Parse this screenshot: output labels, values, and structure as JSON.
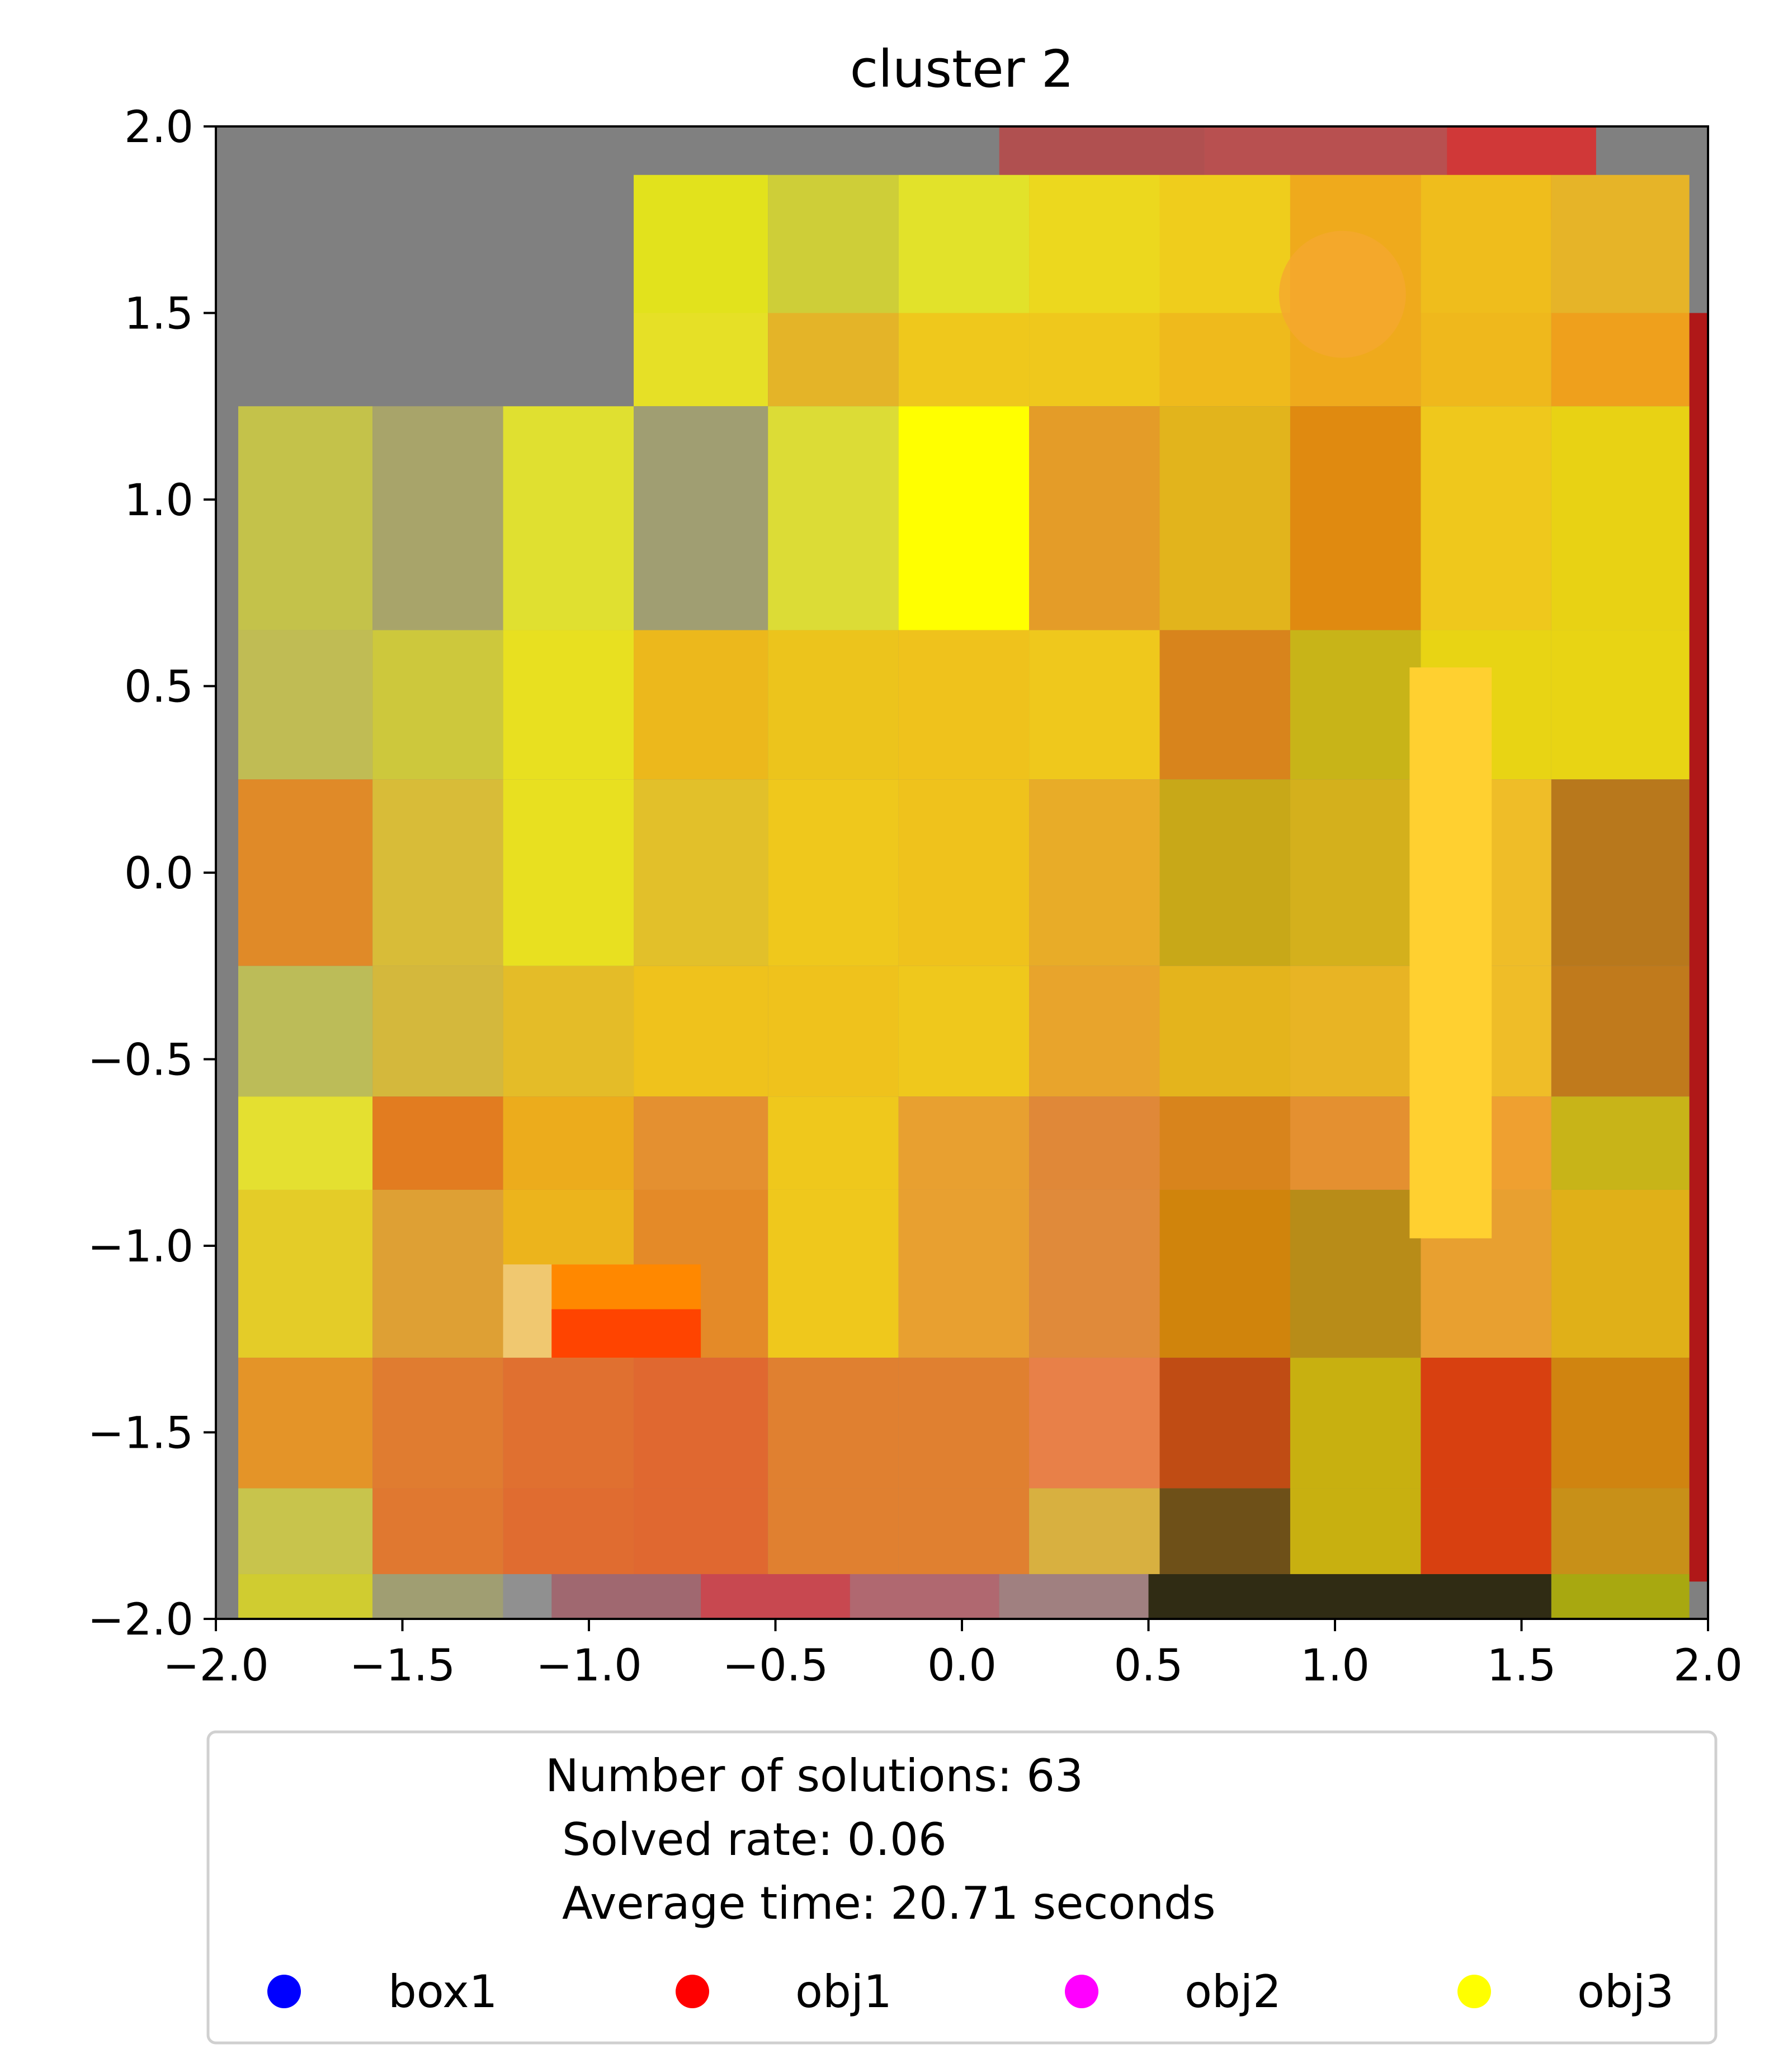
{
  "chart_data": {
    "type": "heatmap",
    "title": "cluster 2",
    "xlabel": "",
    "ylabel": "",
    "xlim": [
      -2.0,
      2.0
    ],
    "ylim": [
      -2.0,
      2.0
    ],
    "xticks": [
      "−2.0",
      "−1.5",
      "−1.0",
      "−0.5",
      "0.0",
      "0.5",
      "1.0",
      "1.5",
      "2.0"
    ],
    "yticks": [
      "2.0",
      "1.5",
      "1.0",
      "0.5",
      "0.0",
      "−0.5",
      "−1.0",
      "−1.5",
      "−2.0"
    ],
    "xtick_values": [
      -2.0,
      -1.5,
      -1.0,
      -0.5,
      0.0,
      0.5,
      1.0,
      1.5,
      2.0
    ],
    "ytick_values": [
      2.0,
      1.5,
      1.0,
      0.5,
      0.0,
      -0.5,
      -1.0,
      -1.5,
      -2.0
    ],
    "grid": false,
    "background_color": "#808080",
    "cells": [
      {
        "x0": 0.1,
        "x1": 0.65,
        "y0": 1.75,
        "y1": 2.0,
        "color": "#b05050"
      },
      {
        "x0": 0.65,
        "x1": 1.3,
        "y0": 1.75,
        "y1": 2.0,
        "color": "#b85050"
      },
      {
        "x0": 1.3,
        "x1": 1.7,
        "y0": 1.75,
        "y1": 2.0,
        "color": "#d03838"
      },
      {
        "x0": -0.88,
        "x1": -0.52,
        "y0": 1.5,
        "y1": 1.87,
        "color": "#e2e21c"
      },
      {
        "x0": -0.52,
        "x1": -0.17,
        "y0": 1.5,
        "y1": 1.87,
        "color": "#cece38"
      },
      {
        "x0": -0.17,
        "x1": 0.18,
        "y0": 1.5,
        "y1": 1.87,
        "color": "#e2e22a"
      },
      {
        "x0": 0.18,
        "x1": 0.53,
        "y0": 1.5,
        "y1": 1.87,
        "color": "#ecd81e"
      },
      {
        "x0": 0.53,
        "x1": 0.88,
        "y0": 1.5,
        "y1": 1.87,
        "color": "#efcd1c"
      },
      {
        "x0": 0.88,
        "x1": 1.23,
        "y0": 1.5,
        "y1": 1.87,
        "color": "#efaa1c"
      },
      {
        "x0": 1.23,
        "x1": 1.58,
        "y0": 1.5,
        "y1": 1.87,
        "color": "#efbd1c"
      },
      {
        "x0": 1.58,
        "x1": 1.95,
        "y0": 1.5,
        "y1": 1.87,
        "color": "#e6b428"
      },
      {
        "x0": -0.88,
        "x1": -0.52,
        "y0": 1.25,
        "y1": 1.5,
        "color": "#e6e026"
      },
      {
        "x0": -0.52,
        "x1": -0.17,
        "y0": 1.25,
        "y1": 1.5,
        "color": "#e4b428"
      },
      {
        "x0": -0.17,
        "x1": 0.18,
        "y0": 1.25,
        "y1": 1.5,
        "color": "#efc81c"
      },
      {
        "x0": 0.18,
        "x1": 0.53,
        "y0": 1.25,
        "y1": 1.5,
        "color": "#efc81c"
      },
      {
        "x0": 0.53,
        "x1": 0.88,
        "y0": 1.25,
        "y1": 1.5,
        "color": "#efba1c"
      },
      {
        "x0": 0.88,
        "x1": 1.23,
        "y0": 1.25,
        "y1": 1.5,
        "color": "#efaa1c"
      },
      {
        "x0": 1.23,
        "x1": 1.58,
        "y0": 1.25,
        "y1": 1.5,
        "color": "#efb81c"
      },
      {
        "x0": 1.58,
        "x1": 1.95,
        "y0": 1.25,
        "y1": 1.5,
        "color": "#efa01c"
      },
      {
        "x0": -1.94,
        "x1": -1.58,
        "y0": 0.65,
        "y1": 1.25,
        "color": "#c4c24a"
      },
      {
        "x0": -1.58,
        "x1": -1.23,
        "y0": 0.65,
        "y1": 1.25,
        "color": "#a8a46a"
      },
      {
        "x0": -1.23,
        "x1": -0.88,
        "y0": 0.65,
        "y1": 1.25,
        "color": "#e0e030"
      },
      {
        "x0": -0.88,
        "x1": -0.52,
        "y0": 0.65,
        "y1": 1.25,
        "color": "#a09e72"
      },
      {
        "x0": -0.52,
        "x1": -0.17,
        "y0": 0.65,
        "y1": 1.25,
        "color": "#dcdc36"
      },
      {
        "x0": -0.17,
        "x1": 0.18,
        "y0": 0.65,
        "y1": 1.25,
        "color": "#ffff00"
      },
      {
        "x0": 0.18,
        "x1": 0.53,
        "y0": 0.65,
        "y1": 1.25,
        "color": "#e49c28"
      },
      {
        "x0": 0.53,
        "x1": 0.88,
        "y0": 0.65,
        "y1": 1.25,
        "color": "#e2b41c"
      },
      {
        "x0": 0.88,
        "x1": 1.23,
        "y0": 0.65,
        "y1": 1.25,
        "color": "#e08a10"
      },
      {
        "x0": 1.23,
        "x1": 1.58,
        "y0": 0.65,
        "y1": 1.25,
        "color": "#efc81c"
      },
      {
        "x0": 1.58,
        "x1": 1.95,
        "y0": 0.65,
        "y1": 1.25,
        "color": "#e8d214"
      },
      {
        "x0": -1.94,
        "x1": -1.58,
        "y0": 0.25,
        "y1": 0.65,
        "color": "#c0bc54"
      },
      {
        "x0": -1.58,
        "x1": -1.23,
        "y0": 0.25,
        "y1": 0.65,
        "color": "#cdc83c"
      },
      {
        "x0": -1.23,
        "x1": -0.88,
        "y0": 0.25,
        "y1": 0.65,
        "color": "#e8e020"
      },
      {
        "x0": -0.88,
        "x1": -0.52,
        "y0": 0.25,
        "y1": 0.65,
        "color": "#ecb81c"
      },
      {
        "x0": -0.52,
        "x1": -0.17,
        "y0": 0.25,
        "y1": 0.65,
        "color": "#ecc41c"
      },
      {
        "x0": -0.17,
        "x1": 0.18,
        "y0": 0.25,
        "y1": 0.65,
        "color": "#efc21c"
      },
      {
        "x0": 0.18,
        "x1": 0.53,
        "y0": 0.25,
        "y1": 0.65,
        "color": "#efc81c"
      },
      {
        "x0": 0.53,
        "x1": 0.88,
        "y0": 0.25,
        "y1": 0.65,
        "color": "#d8841c"
      },
      {
        "x0": 0.88,
        "x1": 1.23,
        "y0": 0.25,
        "y1": 0.65,
        "color": "#c8b418"
      },
      {
        "x0": 1.23,
        "x1": 1.58,
        "y0": 0.25,
        "y1": 0.65,
        "color": "#e8d414"
      },
      {
        "x0": 1.58,
        "x1": 1.95,
        "y0": 0.25,
        "y1": 0.65,
        "color": "#e8d414"
      },
      {
        "x0": -1.94,
        "x1": -1.58,
        "y0": -0.25,
        "y1": 0.25,
        "color": "#e08a28"
      },
      {
        "x0": -1.58,
        "x1": -1.23,
        "y0": -0.25,
        "y1": 0.25,
        "color": "#d8bc38"
      },
      {
        "x0": -1.23,
        "x1": -0.88,
        "y0": -0.25,
        "y1": 0.25,
        "color": "#e8e020"
      },
      {
        "x0": -0.88,
        "x1": -0.52,
        "y0": -0.25,
        "y1": 0.25,
        "color": "#e2c02a"
      },
      {
        "x0": -0.52,
        "x1": -0.17,
        "y0": -0.25,
        "y1": 0.25,
        "color": "#efc81c"
      },
      {
        "x0": -0.17,
        "x1": 0.18,
        "y0": -0.25,
        "y1": 0.25,
        "color": "#efc21c"
      },
      {
        "x0": 0.18,
        "x1": 0.53,
        "y0": -0.25,
        "y1": 0.25,
        "color": "#e8ac28"
      },
      {
        "x0": 0.53,
        "x1": 0.88,
        "y0": -0.25,
        "y1": 0.25,
        "color": "#c8a818"
      },
      {
        "x0": 0.88,
        "x1": 1.23,
        "y0": -0.25,
        "y1": 0.25,
        "color": "#d4b01c"
      },
      {
        "x0": 1.23,
        "x1": 1.58,
        "y0": -0.25,
        "y1": 0.25,
        "color": "#efbd28"
      },
      {
        "x0": 1.58,
        "x1": 1.95,
        "y0": -0.25,
        "y1": 0.25,
        "color": "#b8781c"
      },
      {
        "x0": -1.94,
        "x1": -1.58,
        "y0": -0.6,
        "y1": -0.25,
        "color": "#bcbc58"
      },
      {
        "x0": -1.58,
        "x1": -1.23,
        "y0": -0.6,
        "y1": -0.25,
        "color": "#d4b83c"
      },
      {
        "x0": -1.23,
        "x1": -0.88,
        "y0": -0.6,
        "y1": -0.25,
        "color": "#e4bc28"
      },
      {
        "x0": -0.88,
        "x1": -0.52,
        "y0": -0.6,
        "y1": -0.25,
        "color": "#efc21c"
      },
      {
        "x0": -0.52,
        "x1": -0.17,
        "y0": -0.6,
        "y1": -0.25,
        "color": "#efc21c"
      },
      {
        "x0": -0.17,
        "x1": 0.18,
        "y0": -0.6,
        "y1": -0.25,
        "color": "#efc81c"
      },
      {
        "x0": 0.18,
        "x1": 0.53,
        "y0": -0.6,
        "y1": -0.25,
        "color": "#e8a42c"
      },
      {
        "x0": 0.53,
        "x1": 0.88,
        "y0": -0.6,
        "y1": -0.25,
        "color": "#e4b41c"
      },
      {
        "x0": 0.88,
        "x1": 1.23,
        "y0": -0.6,
        "y1": -0.25,
        "color": "#e8b424"
      },
      {
        "x0": 1.23,
        "x1": 1.58,
        "y0": -0.6,
        "y1": -0.25,
        "color": "#efbd28"
      },
      {
        "x0": 1.58,
        "x1": 1.95,
        "y0": -0.6,
        "y1": -0.25,
        "color": "#c07a1c"
      },
      {
        "x0": -1.94,
        "x1": -1.58,
        "y0": -0.85,
        "y1": -0.6,
        "color": "#e4e030"
      },
      {
        "x0": -1.58,
        "x1": -1.23,
        "y0": -0.85,
        "y1": -0.6,
        "color": "#e27c20"
      },
      {
        "x0": -1.23,
        "x1": -0.88,
        "y0": -0.85,
        "y1": -0.6,
        "color": "#ecac1c"
      },
      {
        "x0": -0.88,
        "x1": -0.52,
        "y0": -0.85,
        "y1": -0.6,
        "color": "#e49030"
      },
      {
        "x0": -0.52,
        "x1": -0.17,
        "y0": -0.85,
        "y1": -0.6,
        "color": "#efc81c"
      },
      {
        "x0": -0.17,
        "x1": 0.18,
        "y0": -0.85,
        "y1": -0.6,
        "color": "#e8a030"
      },
      {
        "x0": 0.18,
        "x1": 0.53,
        "y0": -0.85,
        "y1": -0.6,
        "color": "#e08838"
      },
      {
        "x0": 0.53,
        "x1": 0.88,
        "y0": -0.85,
        "y1": -0.6,
        "color": "#d8841c"
      },
      {
        "x0": 0.88,
        "x1": 1.23,
        "y0": -0.85,
        "y1": -0.6,
        "color": "#e49030"
      },
      {
        "x0": 1.23,
        "x1": 1.58,
        "y0": -0.85,
        "y1": -0.6,
        "color": "#efa030"
      },
      {
        "x0": 1.58,
        "x1": 1.95,
        "y0": -0.85,
        "y1": -0.6,
        "color": "#c8b418"
      },
      {
        "x0": -1.94,
        "x1": -1.58,
        "y0": -1.3,
        "y1": -0.85,
        "color": "#e4cc28"
      },
      {
        "x0": -1.58,
        "x1": -1.23,
        "y0": -1.3,
        "y1": -0.85,
        "color": "#dea034"
      },
      {
        "x0": -1.23,
        "x1": -0.88,
        "y0": -1.3,
        "y1": -0.85,
        "color": "#ecb41c"
      },
      {
        "x0": -0.88,
        "x1": -0.52,
        "y0": -1.3,
        "y1": -0.85,
        "color": "#e48a28"
      },
      {
        "x0": -0.52,
        "x1": -0.17,
        "y0": -1.3,
        "y1": -0.85,
        "color": "#efc81c"
      },
      {
        "x0": -0.17,
        "x1": 0.18,
        "y0": -1.3,
        "y1": -0.85,
        "color": "#e8a030"
      },
      {
        "x0": 0.18,
        "x1": 0.53,
        "y0": -1.3,
        "y1": -0.85,
        "color": "#e08a3a"
      },
      {
        "x0": 0.53,
        "x1": 0.88,
        "y0": -1.3,
        "y1": -0.85,
        "color": "#d0840c"
      },
      {
        "x0": 0.88,
        "x1": 1.23,
        "y0": -1.3,
        "y1": -0.85,
        "color": "#b88c18"
      },
      {
        "x0": 1.23,
        "x1": 1.58,
        "y0": -1.3,
        "y1": -0.85,
        "color": "#e8a030"
      },
      {
        "x0": 1.58,
        "x1": 1.95,
        "y0": -1.3,
        "y1": -0.85,
        "color": "#e0b018"
      },
      {
        "x0": -1.94,
        "x1": -1.58,
        "y0": -1.65,
        "y1": -1.3,
        "color": "#e49428"
      },
      {
        "x0": -1.58,
        "x1": -1.23,
        "y0": -1.65,
        "y1": -1.3,
        "color": "#e07c30"
      },
      {
        "x0": -1.23,
        "x1": -0.88,
        "y0": -1.65,
        "y1": -1.3,
        "color": "#e07030"
      },
      {
        "x0": -0.88,
        "x1": -0.52,
        "y0": -1.65,
        "y1": -1.3,
        "color": "#e06830"
      },
      {
        "x0": -0.52,
        "x1": -0.17,
        "y0": -1.65,
        "y1": -1.3,
        "color": "#e08030"
      },
      {
        "x0": -0.17,
        "x1": 0.18,
        "y0": -1.65,
        "y1": -1.3,
        "color": "#e08030"
      },
      {
        "x0": 0.18,
        "x1": 0.53,
        "y0": -1.65,
        "y1": -1.3,
        "color": "#e88048"
      },
      {
        "x0": 0.53,
        "x1": 0.88,
        "y0": -1.65,
        "y1": -1.3,
        "color": "#c04c14"
      },
      {
        "x0": 0.88,
        "x1": 1.23,
        "y0": -1.65,
        "y1": -1.3,
        "color": "#c8b010"
      },
      {
        "x0": 1.23,
        "x1": 1.58,
        "y0": -1.65,
        "y1": -1.3,
        "color": "#d84010"
      },
      {
        "x0": 1.58,
        "x1": 1.95,
        "y0": -1.65,
        "y1": -1.3,
        "color": "#d08410"
      },
      {
        "x0": -1.94,
        "x1": -1.58,
        "y0": -1.88,
        "y1": -1.65,
        "color": "#c8c44c"
      },
      {
        "x0": -1.58,
        "x1": -1.23,
        "y0": -1.88,
        "y1": -1.65,
        "color": "#e07830"
      },
      {
        "x0": -1.23,
        "x1": -0.88,
        "y0": -1.88,
        "y1": -1.65,
        "color": "#e06c30"
      },
      {
        "x0": -0.88,
        "x1": -0.52,
        "y0": -1.88,
        "y1": -1.65,
        "color": "#e06830"
      },
      {
        "x0": -0.52,
        "x1": -0.17,
        "y0": -1.88,
        "y1": -1.65,
        "color": "#e08030"
      },
      {
        "x0": -0.17,
        "x1": 0.18,
        "y0": -1.88,
        "y1": -1.65,
        "color": "#e08030"
      },
      {
        "x0": 0.18,
        "x1": 0.53,
        "y0": -1.88,
        "y1": -1.65,
        "color": "#d8b040"
      },
      {
        "x0": 0.53,
        "x1": 0.88,
        "y0": -1.88,
        "y1": -1.65,
        "color": "#6e5018"
      },
      {
        "x0": 0.88,
        "x1": 1.23,
        "y0": -1.88,
        "y1": -1.65,
        "color": "#c8b010"
      },
      {
        "x0": 1.23,
        "x1": 1.58,
        "y0": -1.88,
        "y1": -1.65,
        "color": "#d84010"
      },
      {
        "x0": 1.58,
        "x1": 1.95,
        "y0": -1.88,
        "y1": -1.65,
        "color": "#c89018"
      },
      {
        "x0": -1.94,
        "x1": -1.58,
        "y0": -2.0,
        "y1": -1.88,
        "color": "#d0cc30"
      },
      {
        "x0": -1.58,
        "x1": -1.23,
        "y0": -2.0,
        "y1": -1.88,
        "color": "#a09e72"
      },
      {
        "x0": -1.23,
        "x1": -1.1,
        "y0": -2.0,
        "y1": -1.88,
        "color": "#909090"
      },
      {
        "x0": -1.1,
        "x1": -0.7,
        "y0": -2.0,
        "y1": -1.88,
        "color": "#a06870"
      },
      {
        "x0": -0.7,
        "x1": -0.3,
        "y0": -2.0,
        "y1": -1.88,
        "color": "#c84850"
      },
      {
        "x0": -0.3,
        "x1": 0.1,
        "y0": -2.0,
        "y1": -1.88,
        "color": "#b06870"
      },
      {
        "x0": 0.1,
        "x1": 0.5,
        "y0": -2.0,
        "y1": -1.88,
        "color": "#a08080"
      },
      {
        "x0": 0.5,
        "x1": 1.58,
        "y0": -2.0,
        "y1": -1.88,
        "color": "#302c14"
      },
      {
        "x0": 1.58,
        "x1": 1.95,
        "y0": -2.0,
        "y1": -1.88,
        "color": "#a8a810"
      },
      {
        "x0": -1.23,
        "x1": -0.88,
        "y0": -1.3,
        "y1": -1.05,
        "color": "#f0c870"
      },
      {
        "x0": -1.1,
        "x1": -0.7,
        "y0": -1.3,
        "y1": -1.05,
        "color": "#ff8800"
      },
      {
        "x0": -1.1,
        "x1": -0.7,
        "y0": -1.3,
        "y1": -1.17,
        "color": "#ff4400"
      },
      {
        "x0": 1.2,
        "x1": 1.42,
        "y0": -0.98,
        "y1": 0.55,
        "color": "#ffd030"
      },
      {
        "x0": 1.95,
        "x1": 2.0,
        "y0": -1.9,
        "y1": 1.5,
        "color": "#b01818"
      }
    ],
    "circle": {
      "cx": 1.02,
      "cy": 1.55,
      "r": 0.17,
      "color": "#f5a830"
    },
    "legend": {
      "placement": "below",
      "text_lines": [
        "Number of solutions: 63",
        "Solved rate: 0.06",
        "Average time: 20.71 seconds"
      ],
      "entries": [
        {
          "label": "box1",
          "color": "#0000ff"
        },
        {
          "label": "obj1",
          "color": "#ff0000"
        },
        {
          "label": "obj2",
          "color": "#ff00ff"
        },
        {
          "label": "obj3",
          "color": "#ffff00"
        }
      ]
    }
  }
}
